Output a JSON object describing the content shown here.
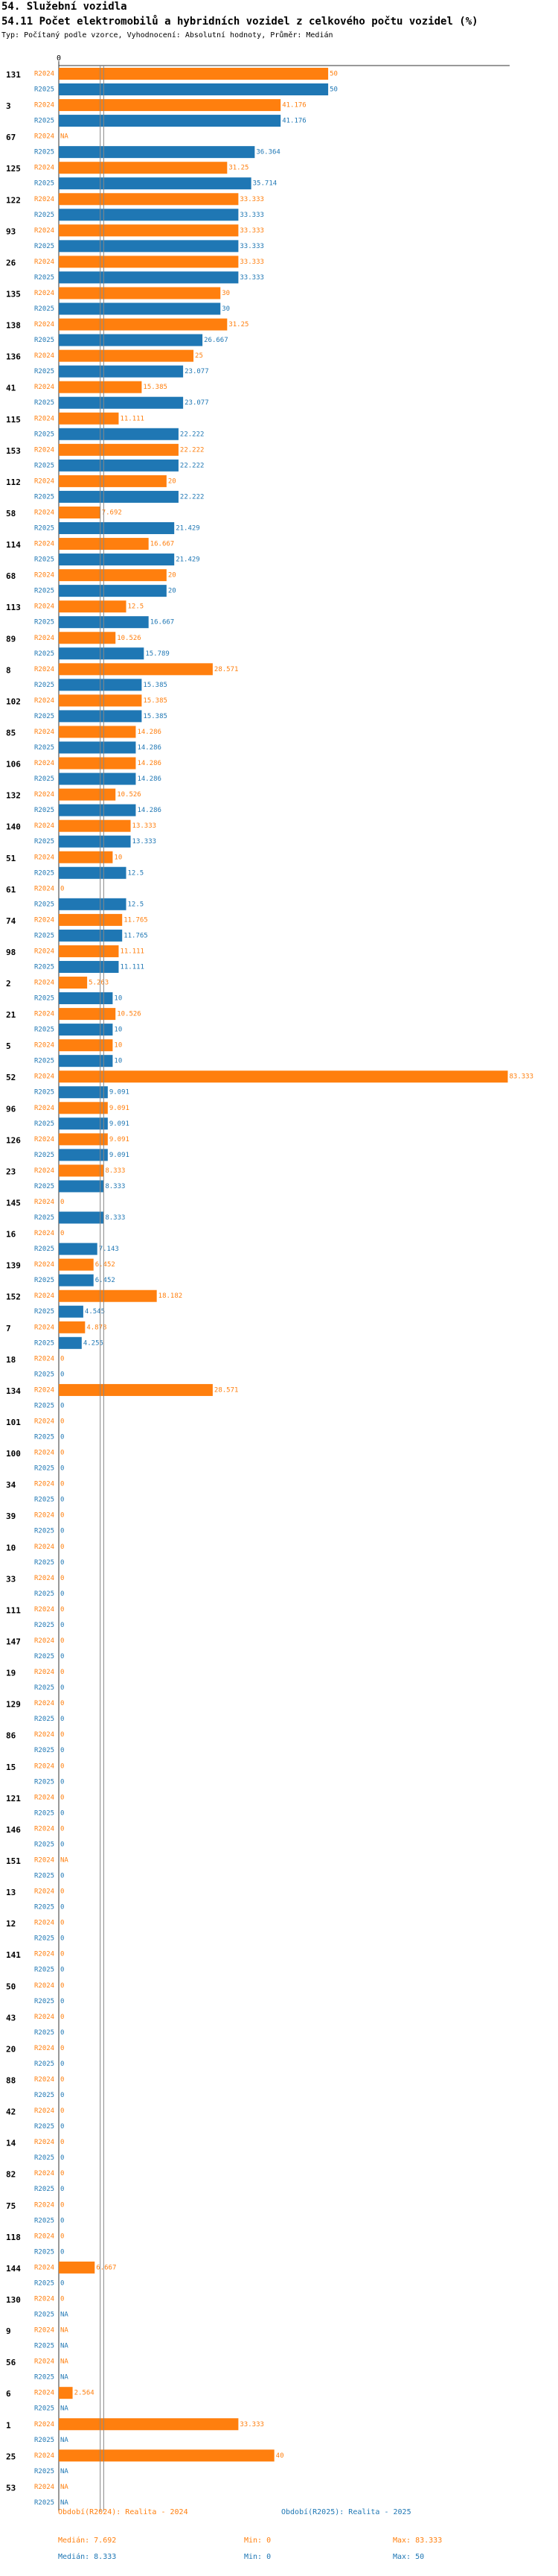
{
  "header": {
    "section": "54. Služební vozidla",
    "title": "54.11 Počet elektromobilů a hybridních vozidel z celkového počtu vozidel (%)",
    "subtitle": "Typ: Počítaný podle vzorce, Vyhodnocení: Absolutní hodnoty, Průměr: Medián"
  },
  "colors": {
    "r2024": "#ff7f0e",
    "r2025": "#1f77b4",
    "median": "#888888"
  },
  "chart_data": {
    "type": "bar",
    "orientation": "horizontal",
    "axis_min": 0,
    "axis_max": 83.333,
    "zero_label": "0",
    "series_labels": [
      "R2024",
      "R2025"
    ],
    "categories": [
      {
        "id": "131",
        "r2024": "50",
        "r2025": "50"
      },
      {
        "id": "3",
        "r2024": "41.176",
        "r2025": "41.176"
      },
      {
        "id": "67",
        "r2024": "NA",
        "r2025": "36.364"
      },
      {
        "id": "125",
        "r2024": "31.25",
        "r2025": "35.714"
      },
      {
        "id": "122",
        "r2024": "33.333",
        "r2025": "33.333"
      },
      {
        "id": "93",
        "r2024": "33.333",
        "r2025": "33.333"
      },
      {
        "id": "26",
        "r2024": "33.333",
        "r2025": "33.333"
      },
      {
        "id": "135",
        "r2024": "30",
        "r2025": "30"
      },
      {
        "id": "138",
        "r2024": "31.25",
        "r2025": "26.667"
      },
      {
        "id": "136",
        "r2024": "25",
        "r2025": "23.077"
      },
      {
        "id": "41",
        "r2024": "15.385",
        "r2025": "23.077"
      },
      {
        "id": "115",
        "r2024": "11.111",
        "r2025": "22.222"
      },
      {
        "id": "153",
        "r2024": "22.222",
        "r2025": "22.222"
      },
      {
        "id": "112",
        "r2024": "20",
        "r2025": "22.222"
      },
      {
        "id": "58",
        "r2024": "7.692",
        "r2025": "21.429"
      },
      {
        "id": "114",
        "r2024": "16.667",
        "r2025": "21.429"
      },
      {
        "id": "68",
        "r2024": "20",
        "r2025": "20"
      },
      {
        "id": "113",
        "r2024": "12.5",
        "r2025": "16.667"
      },
      {
        "id": "89",
        "r2024": "10.526",
        "r2025": "15.789"
      },
      {
        "id": "8",
        "r2024": "28.571",
        "r2025": "15.385"
      },
      {
        "id": "102",
        "r2024": "15.385",
        "r2025": "15.385"
      },
      {
        "id": "85",
        "r2024": "14.286",
        "r2025": "14.286"
      },
      {
        "id": "106",
        "r2024": "14.286",
        "r2025": "14.286"
      },
      {
        "id": "132",
        "r2024": "10.526",
        "r2025": "14.286"
      },
      {
        "id": "140",
        "r2024": "13.333",
        "r2025": "13.333"
      },
      {
        "id": "51",
        "r2024": "10",
        "r2025": "12.5"
      },
      {
        "id": "61",
        "r2024": "0",
        "r2025": "12.5"
      },
      {
        "id": "74",
        "r2024": "11.765",
        "r2025": "11.765"
      },
      {
        "id": "98",
        "r2024": "11.111",
        "r2025": "11.111"
      },
      {
        "id": "2",
        "r2024": "5.263",
        "r2025": "10"
      },
      {
        "id": "21",
        "r2024": "10.526",
        "r2025": "10"
      },
      {
        "id": "5",
        "r2024": "10",
        "r2025": "10"
      },
      {
        "id": "52",
        "r2024": "83.333",
        "r2025": "9.091"
      },
      {
        "id": "96",
        "r2024": "9.091",
        "r2025": "9.091"
      },
      {
        "id": "126",
        "r2024": "9.091",
        "r2025": "9.091"
      },
      {
        "id": "23",
        "r2024": "8.333",
        "r2025": "8.333"
      },
      {
        "id": "145",
        "r2024": "0",
        "r2025": "8.333"
      },
      {
        "id": "16",
        "r2024": "0",
        "r2025": "7.143"
      },
      {
        "id": "139",
        "r2024": "6.452",
        "r2025": "6.452"
      },
      {
        "id": "152",
        "r2024": "18.182",
        "r2025": "4.545"
      },
      {
        "id": "7",
        "r2024": "4.878",
        "r2025": "4.255"
      },
      {
        "id": "18",
        "r2024": "0",
        "r2025": "0"
      },
      {
        "id": "134",
        "r2024": "28.571",
        "r2025": "0"
      },
      {
        "id": "101",
        "r2024": "0",
        "r2025": "0"
      },
      {
        "id": "100",
        "r2024": "0",
        "r2025": "0"
      },
      {
        "id": "34",
        "r2024": "0",
        "r2025": "0"
      },
      {
        "id": "39",
        "r2024": "0",
        "r2025": "0"
      },
      {
        "id": "10",
        "r2024": "0",
        "r2025": "0"
      },
      {
        "id": "33",
        "r2024": "0",
        "r2025": "0"
      },
      {
        "id": "111",
        "r2024": "0",
        "r2025": "0"
      },
      {
        "id": "147",
        "r2024": "0",
        "r2025": "0"
      },
      {
        "id": "19",
        "r2024": "0",
        "r2025": "0"
      },
      {
        "id": "129",
        "r2024": "0",
        "r2025": "0"
      },
      {
        "id": "86",
        "r2024": "0",
        "r2025": "0"
      },
      {
        "id": "15",
        "r2024": "0",
        "r2025": "0"
      },
      {
        "id": "121",
        "r2024": "0",
        "r2025": "0"
      },
      {
        "id": "146",
        "r2024": "0",
        "r2025": "0"
      },
      {
        "id": "151",
        "r2024": "NA",
        "r2025": "0"
      },
      {
        "id": "13",
        "r2024": "0",
        "r2025": "0"
      },
      {
        "id": "12",
        "r2024": "0",
        "r2025": "0"
      },
      {
        "id": "141",
        "r2024": "0",
        "r2025": "0"
      },
      {
        "id": "50",
        "r2024": "0",
        "r2025": "0"
      },
      {
        "id": "43",
        "r2024": "0",
        "r2025": "0"
      },
      {
        "id": "20",
        "r2024": "0",
        "r2025": "0"
      },
      {
        "id": "88",
        "r2024": "0",
        "r2025": "0"
      },
      {
        "id": "42",
        "r2024": "0",
        "r2025": "0"
      },
      {
        "id": "14",
        "r2024": "0",
        "r2025": "0"
      },
      {
        "id": "82",
        "r2024": "0",
        "r2025": "0"
      },
      {
        "id": "75",
        "r2024": "0",
        "r2025": "0"
      },
      {
        "id": "118",
        "r2024": "0",
        "r2025": "0"
      },
      {
        "id": "144",
        "r2024": "6.667",
        "r2025": "0"
      },
      {
        "id": "130",
        "r2024": "0",
        "r2025": "NA"
      },
      {
        "id": "9",
        "r2024": "NA",
        "r2025": "NA"
      },
      {
        "id": "56",
        "r2024": "NA",
        "r2025": "NA"
      },
      {
        "id": "6",
        "r2024": "2.564",
        "r2025": "NA"
      },
      {
        "id": "1",
        "r2024": "33.333",
        "r2025": "NA"
      },
      {
        "id": "25",
        "r2024": "40",
        "r2025": "NA"
      },
      {
        "id": "53",
        "r2024": "NA",
        "r2025": "NA"
      }
    ],
    "medians": {
      "r2024": 7.692,
      "r2025": 8.333
    }
  },
  "footer": {
    "r2024_label": "Období(R2024): Realita - 2024",
    "r2025_label": "Období(R2025): Realita - 2025",
    "r2024_median": "Medián: 7.692",
    "r2024_min": "Min: 0",
    "r2024_max": "Max: 83.333",
    "r2025_median": "Medián: 8.333",
    "r2025_min": "Min: 0",
    "r2025_max": "Max: 50"
  }
}
